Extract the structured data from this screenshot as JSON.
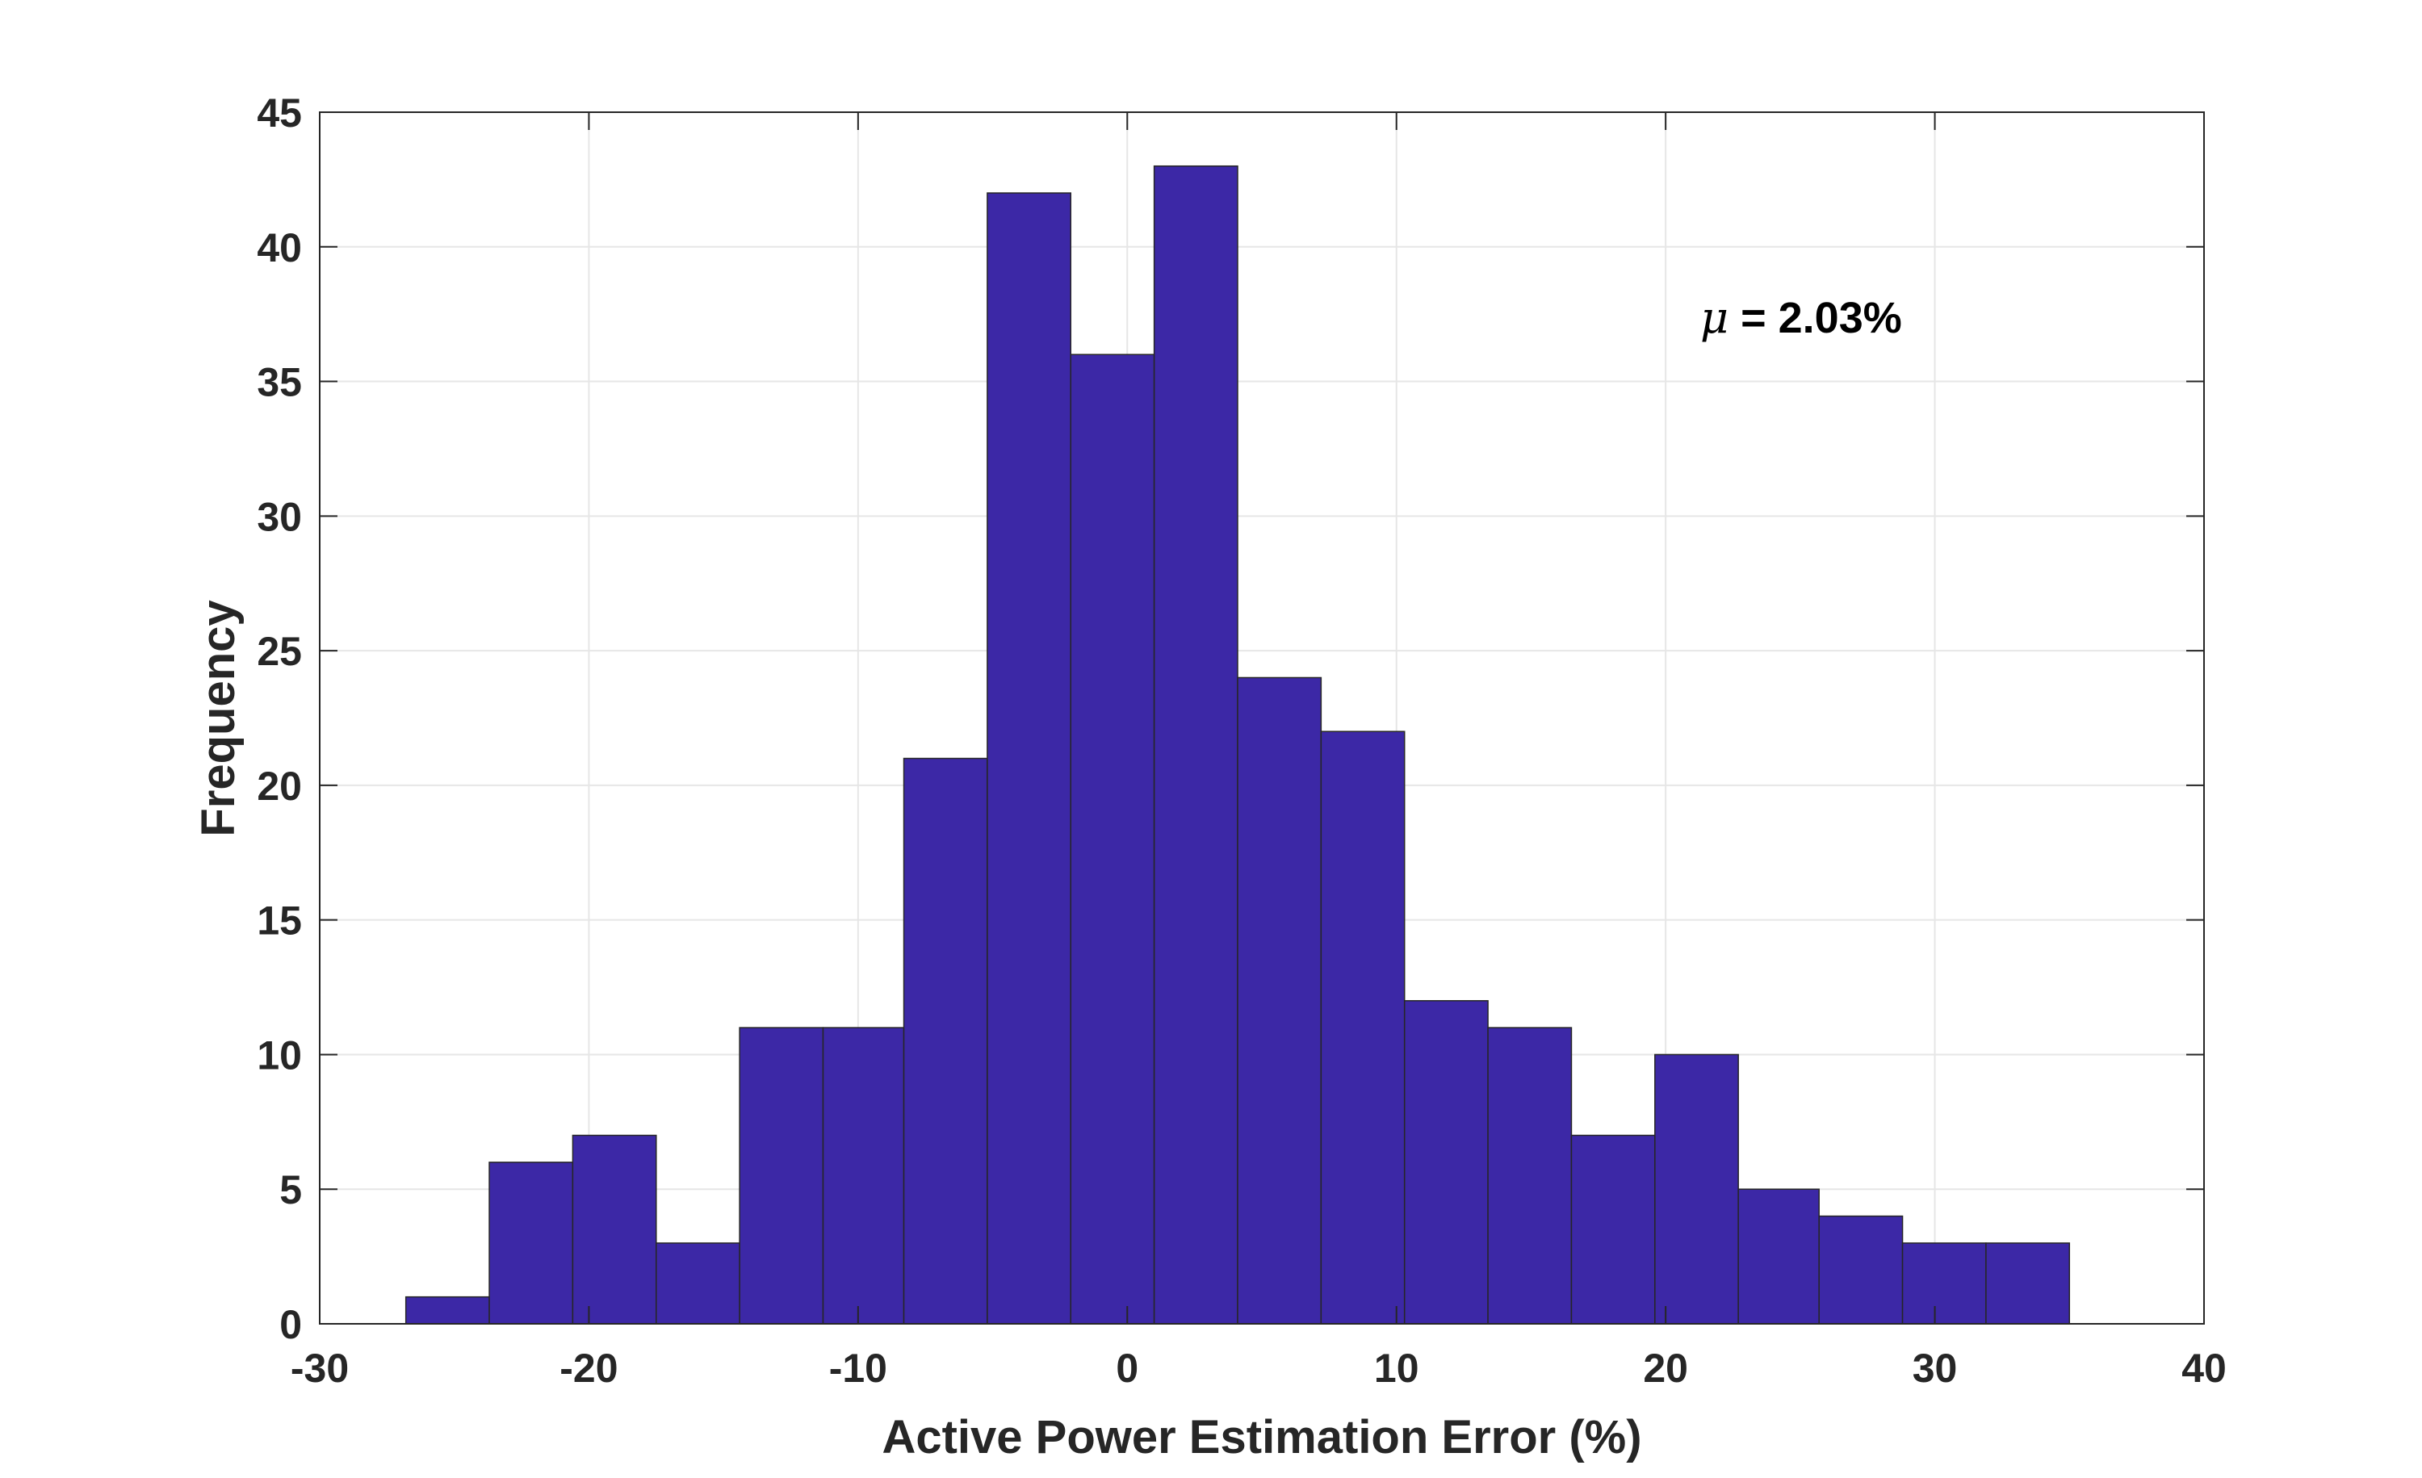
{
  "chart_data": {
    "type": "histogram",
    "xlabel": "Active Power Estimation Error (%)",
    "ylabel": "Frequency",
    "xlim": [
      -30,
      40
    ],
    "ylim": [
      0,
      45
    ],
    "xticks": [
      "-30",
      "-20",
      "-10",
      "0",
      "10",
      "20",
      "30",
      "40"
    ],
    "yticks": [
      "0",
      "5",
      "10",
      "15",
      "20",
      "25",
      "30",
      "35",
      "40",
      "45"
    ],
    "grid": true,
    "bar_color": "#3c28a6",
    "bin_edges": [
      -26.8,
      -23.7,
      -20.6,
      -17.5,
      -14.4,
      -11.3,
      -8.3,
      -5.2,
      -2.1,
      1.0,
      4.1,
      7.2,
      10.3,
      13.4,
      16.5,
      19.6,
      22.7,
      25.7,
      28.8,
      31.9,
      35.0
    ],
    "values": [
      1,
      6,
      7,
      3,
      11,
      11,
      21,
      42,
      36,
      43,
      24,
      22,
      12,
      11,
      7,
      10,
      5,
      4,
      3,
      3
    ],
    "annotation": {
      "symbol": "μ",
      "text": " = 2.03%"
    }
  }
}
